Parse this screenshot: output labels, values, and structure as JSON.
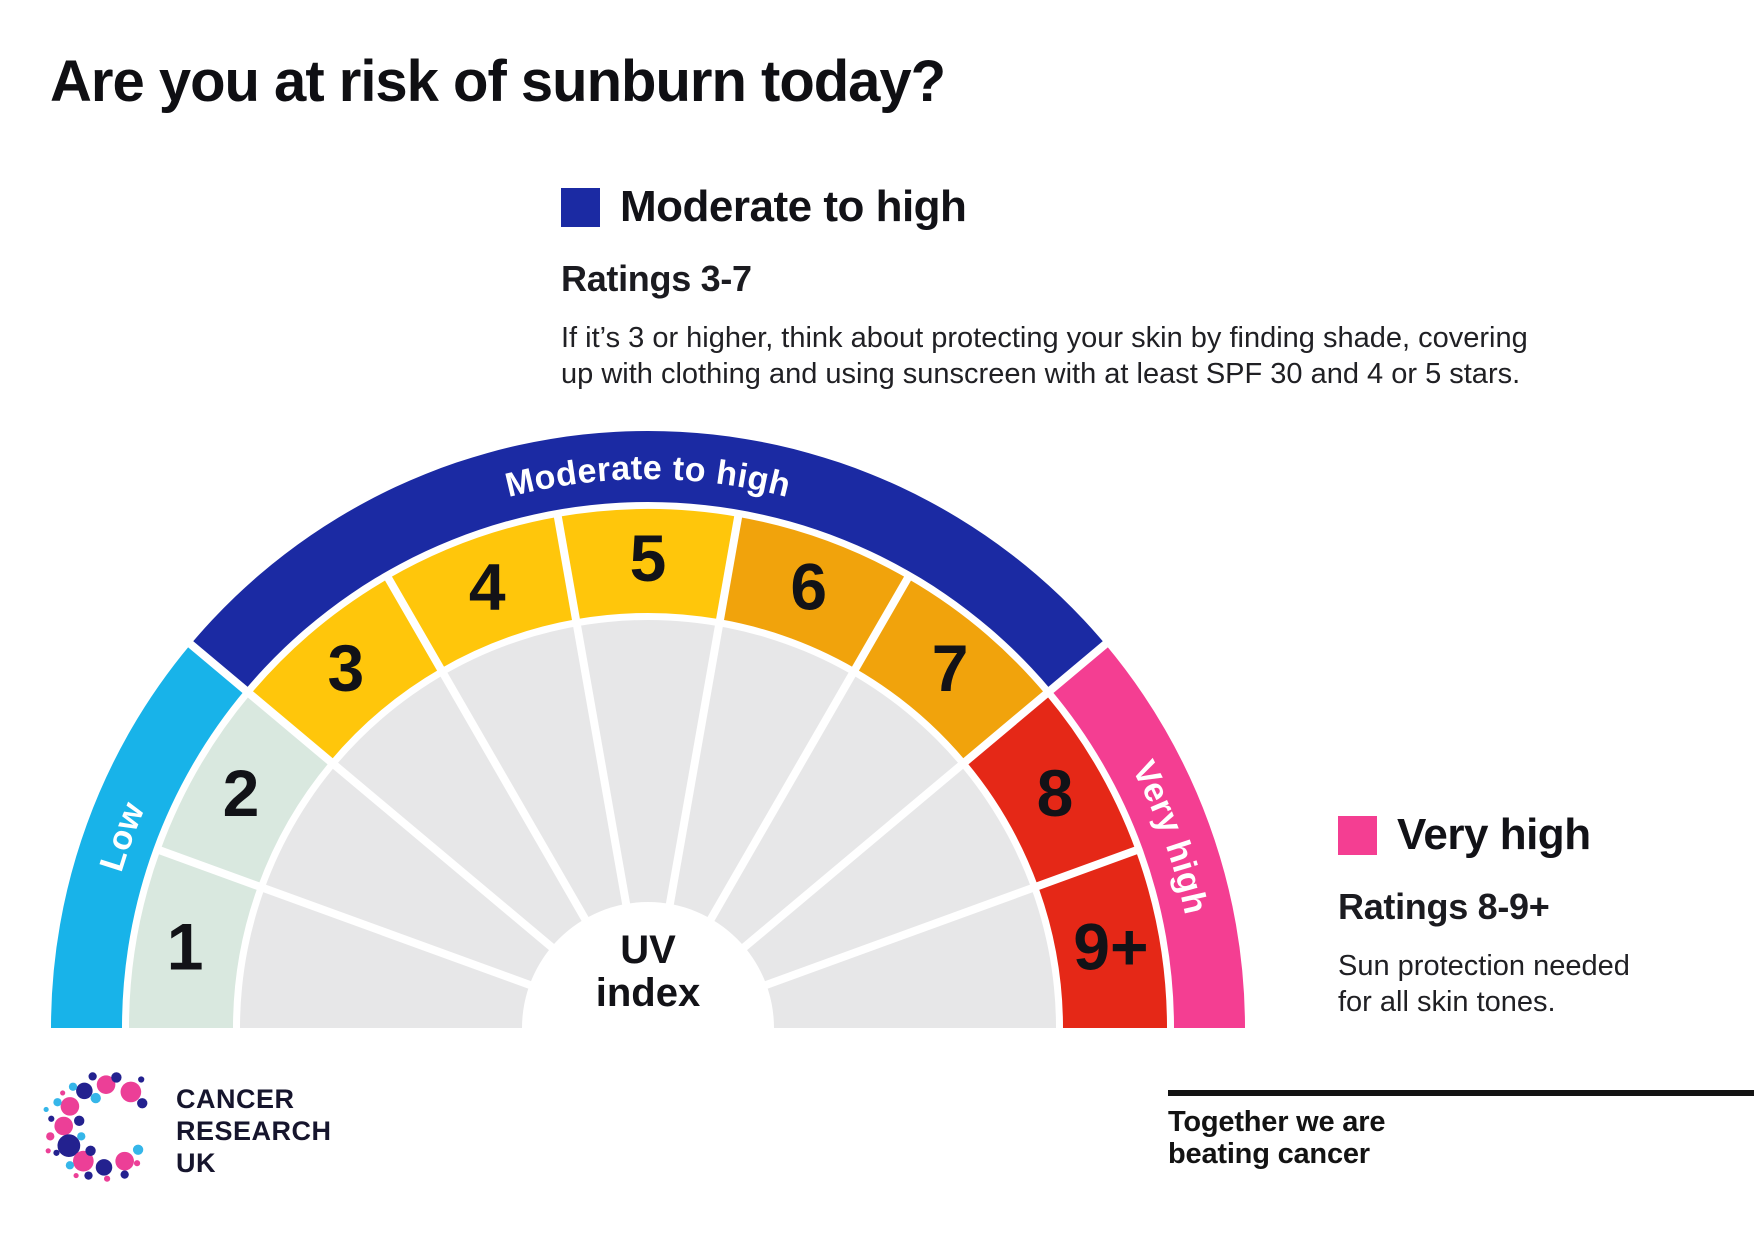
{
  "title": "Are you at risk of sunburn today?",
  "callouts": {
    "moderate": {
      "heading": "Moderate to high",
      "ratings": "Ratings 3-7",
      "body_line1": "If it’s 3 or higher, think about protecting your skin by finding shade, covering",
      "body_line2": "up with clothing and using sunscreen with at least SPF 30 and 4 or 5 stars.",
      "swatch_color": "#1b2aa3"
    },
    "very_high": {
      "heading": "Very high",
      "ratings": "Ratings 8-9+",
      "body_line1": "Sun protection needed",
      "body_line2": "for all skin tones.",
      "swatch_color": "#f43e92"
    }
  },
  "chart_data": {
    "type": "gauge",
    "title": "UV index",
    "center_label_lines": [
      "UV",
      "index"
    ],
    "segments": [
      {
        "value": "1",
        "band": "Low",
        "color": "#d9e8df"
      },
      {
        "value": "2",
        "band": "Low",
        "color": "#d9e8df"
      },
      {
        "value": "3",
        "band": "Moderate to high",
        "color": "#ffc60b"
      },
      {
        "value": "4",
        "band": "Moderate to high",
        "color": "#ffc60b"
      },
      {
        "value": "5",
        "band": "Moderate to high",
        "color": "#ffc60b"
      },
      {
        "value": "6",
        "band": "Moderate to high",
        "color": "#f1a30c"
      },
      {
        "value": "7",
        "band": "Moderate to high",
        "color": "#f1a30c"
      },
      {
        "value": "8",
        "band": "Very high",
        "color": "#e52817"
      },
      {
        "value": "9+",
        "band": "Very high",
        "color": "#e52817"
      }
    ],
    "bands": [
      {
        "label": "Low",
        "color": "#18b3e9",
        "segment_span": [
          1,
          2
        ]
      },
      {
        "label": "Moderate to high",
        "color": "#1b2aa3",
        "segment_span": [
          3,
          7
        ]
      },
      {
        "label": "Very high",
        "color": "#f43e92",
        "segment_span": [
          8,
          9
        ]
      }
    ],
    "inner_color": "#e7e7e8",
    "number_color": "#121217",
    "label_text_color": "#ffffff",
    "layout": {
      "shape": "semicircle",
      "segment_angle_deg": 20,
      "start_deg": 180,
      "end_deg": 0
    }
  },
  "footer": {
    "logo_text_lines": [
      "CANCER",
      "RESEARCH",
      "UK"
    ],
    "tagline_line1": "Together we are",
    "tagline_line2": "beating cancer"
  }
}
